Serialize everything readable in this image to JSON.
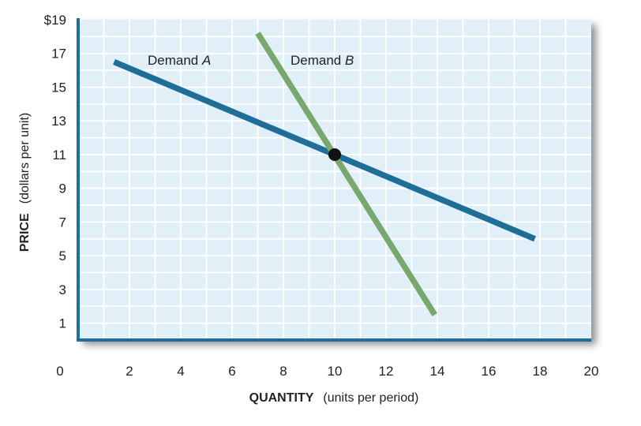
{
  "chart_data": {
    "type": "line",
    "xlabel": {
      "main": "QUANTITY",
      "sub": "(units per period)"
    },
    "ylabel": {
      "main": "PRICE",
      "sub": "(dollars per unit)"
    },
    "xlim": [
      0,
      20
    ],
    "ylim": [
      0,
      19
    ],
    "x_ticks": [
      "0",
      "2",
      "4",
      "6",
      "8",
      "10",
      "12",
      "14",
      "16",
      "18",
      "20"
    ],
    "y_ticks": [
      "1",
      "3",
      "5",
      "7",
      "9",
      "11",
      "13",
      "15",
      "17",
      "$19"
    ],
    "x_tick_values": [
      0,
      2,
      4,
      6,
      8,
      10,
      12,
      14,
      16,
      18,
      20
    ],
    "y_tick_values": [
      1,
      3,
      5,
      7,
      9,
      11,
      13,
      15,
      17,
      19
    ],
    "grid": true,
    "series": [
      {
        "name": "Demand A",
        "label_prefix": "Demand ",
        "label_letter": "A",
        "color": "#1f6e97",
        "points": [
          [
            1.4,
            16.5
          ],
          [
            17.8,
            6.0
          ]
        ]
      },
      {
        "name": "Demand B",
        "label_prefix": "Demand ",
        "label_letter": "B",
        "color": "#78a86b",
        "points": [
          [
            7.0,
            18.2
          ],
          [
            13.9,
            1.5
          ]
        ]
      }
    ],
    "intersection": {
      "x": 10,
      "y": 11
    },
    "colors": {
      "plot_background": "#e0eff8",
      "grid": "#ffffff",
      "axis": "#1f6e97",
      "marker": "#111111"
    }
  }
}
